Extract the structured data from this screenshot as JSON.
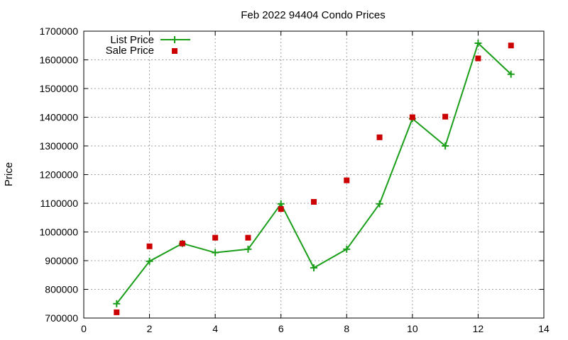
{
  "chart_data": {
    "type": "line",
    "title": "Feb 2022 94404 Condo Prices",
    "xlabel": "",
    "ylabel": "Price",
    "xlim": [
      0,
      14
    ],
    "ylim": [
      700000,
      1700000
    ],
    "xticks": [
      0,
      2,
      4,
      6,
      8,
      10,
      12,
      14
    ],
    "yticks": [
      700000,
      800000,
      900000,
      1000000,
      1100000,
      1200000,
      1300000,
      1400000,
      1500000,
      1600000,
      1700000
    ],
    "grid": true,
    "legend_position": "top-left",
    "series": [
      {
        "name": "List Price",
        "style": "line+cross",
        "color": "#1a9e1a",
        "x": [
          1,
          2,
          3,
          4,
          5,
          6,
          7,
          8,
          9,
          10,
          11,
          12,
          13
        ],
        "y": [
          750000,
          898000,
          960000,
          928000,
          940000,
          1098000,
          875000,
          940000,
          1098000,
          1395000,
          1300000,
          1658000,
          1550000
        ]
      },
      {
        "name": "Sale Price",
        "style": "square",
        "color": "#cc0000",
        "x": [
          1,
          2,
          3,
          4,
          5,
          6,
          7,
          8,
          9,
          10,
          11,
          12,
          13
        ],
        "y": [
          720000,
          950000,
          960000,
          980000,
          980000,
          1080000,
          1105000,
          1180000,
          1330000,
          1400000,
          1402000,
          1605000,
          1650000
        ]
      }
    ]
  }
}
